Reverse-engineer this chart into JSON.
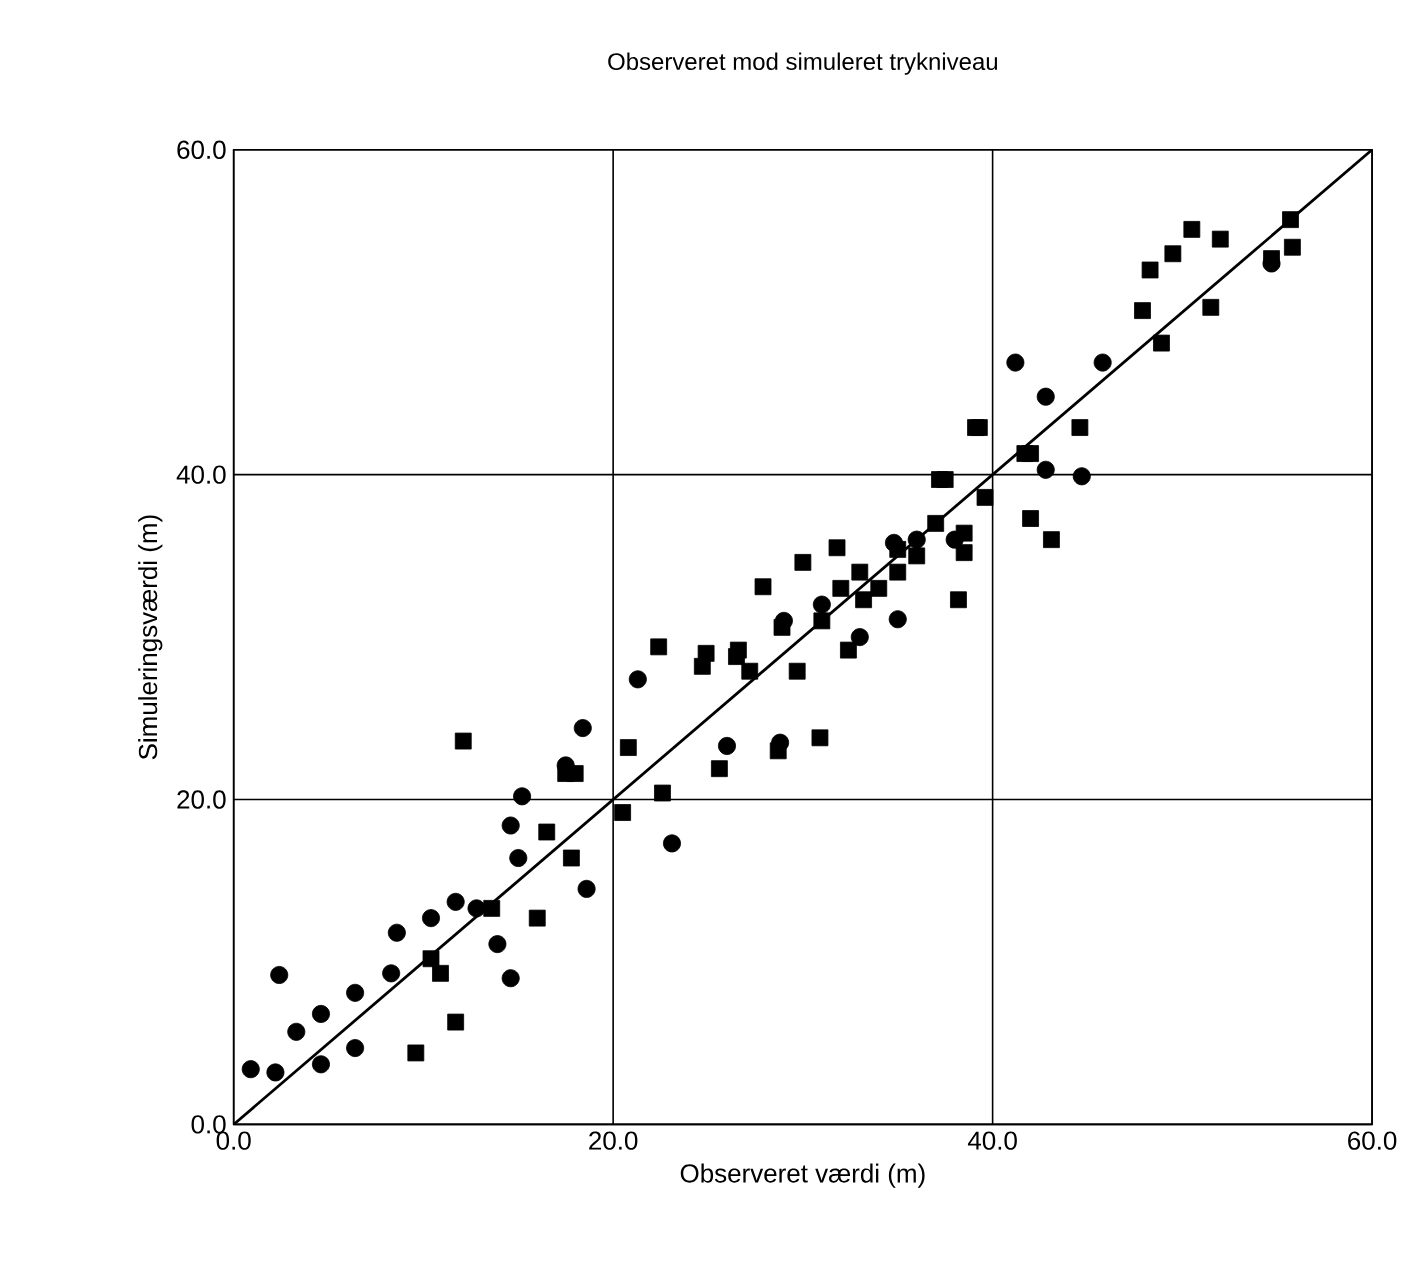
{
  "chart_data": {
    "type": "scatter",
    "title": "Observeret mod simuleret trykniveau",
    "xlabel": "Observeret værdi (m)",
    "ylabel": "Simuleringsværdi (m)",
    "xlim": [
      0,
      60
    ],
    "ylim": [
      0,
      60
    ],
    "xticks": [
      {
        "value": 0,
        "label": "0.0"
      },
      {
        "value": 20,
        "label": "20.0"
      },
      {
        "value": 40,
        "label": "40.0"
      },
      {
        "value": 60,
        "label": "60.0"
      }
    ],
    "yticks": [
      {
        "value": 0,
        "label": "0.0"
      },
      {
        "value": 20,
        "label": "20.0"
      },
      {
        "value": 40,
        "label": "40.0"
      },
      {
        "value": 60,
        "label": "60.0"
      }
    ],
    "grid": true,
    "series": [
      {
        "marker": "circle",
        "color": "#000000",
        "x": [
          0.9,
          2.4,
          3.3,
          4.6,
          4.6,
          6.4,
          6.4,
          2.2,
          8.6,
          8.3,
          10.4,
          11.7,
          12.8,
          13.9,
          14.6,
          14.6,
          15.2,
          15.0,
          18.6,
          17.5,
          23.1,
          26.0,
          21.3,
          18.4,
          34.8,
          35.0,
          28.8,
          29.0,
          31.0,
          33.0,
          36.0,
          38.0,
          41.2,
          42.8,
          45.8,
          44.7,
          54.7,
          42.8
        ],
        "values": [
          3.4,
          9.2,
          5.7,
          6.8,
          3.7,
          8.1,
          4.7,
          3.2,
          11.8,
          9.3,
          12.7,
          13.7,
          13.3,
          11.1,
          9.0,
          18.4,
          20.2,
          16.4,
          14.5,
          22.1,
          17.3,
          23.3,
          27.4,
          24.4,
          35.8,
          31.1,
          23.5,
          31.0,
          32.0,
          30.0,
          36.0,
          36.0,
          46.9,
          44.8,
          46.9,
          39.9,
          53.0,
          40.3
        ]
      },
      {
        "marker": "square",
        "color": "#000000",
        "x": [
          9.6,
          11.7,
          10.4,
          10.9,
          16.0,
          16.5,
          17.8,
          18.0,
          13.6,
          12.1,
          22.4,
          24.7,
          26.5,
          17.5,
          22.6,
          20.8,
          20.5,
          27.9,
          38.2,
          32.4,
          30.9,
          28.7,
          24.9,
          26.6,
          37.2,
          39.3,
          41.7,
          31.8,
          30.0,
          28.9,
          35.0,
          38.5,
          33.2,
          27.2,
          29.7,
          25.6,
          31.0,
          32.0,
          33.0,
          34.0,
          35.0,
          36.0,
          37.0,
          52.0,
          50.5,
          49.5,
          48.3,
          47.9,
          51.5,
          48.9,
          55.7,
          55.8,
          54.7,
          44.6,
          42.0,
          39.1,
          43.1,
          42.0,
          39.6,
          37.5,
          38.5
        ],
        "values": [
          4.4,
          6.3,
          10.2,
          9.3,
          12.7,
          18.0,
          16.4,
          21.6,
          13.3,
          23.6,
          29.4,
          28.2,
          28.8,
          21.6,
          20.4,
          23.2,
          19.2,
          33.1,
          32.3,
          29.2,
          23.8,
          23.0,
          29.0,
          29.2,
          39.7,
          42.9,
          41.3,
          35.5,
          34.6,
          30.6,
          35.4,
          35.2,
          32.3,
          27.9,
          27.9,
          21.9,
          31.0,
          33.0,
          34.0,
          33.0,
          34.0,
          35.0,
          37.0,
          54.5,
          55.1,
          53.6,
          52.6,
          50.1,
          50.3,
          48.1,
          55.7,
          54.0,
          53.3,
          42.9,
          41.3,
          42.9,
          36.0,
          37.3,
          38.6,
          39.7,
          36.4
        ]
      },
      {
        "type": "line",
        "marker": "none",
        "color": "#000000",
        "x": [
          0,
          60
        ],
        "values": [
          0,
          60
        ]
      }
    ]
  }
}
